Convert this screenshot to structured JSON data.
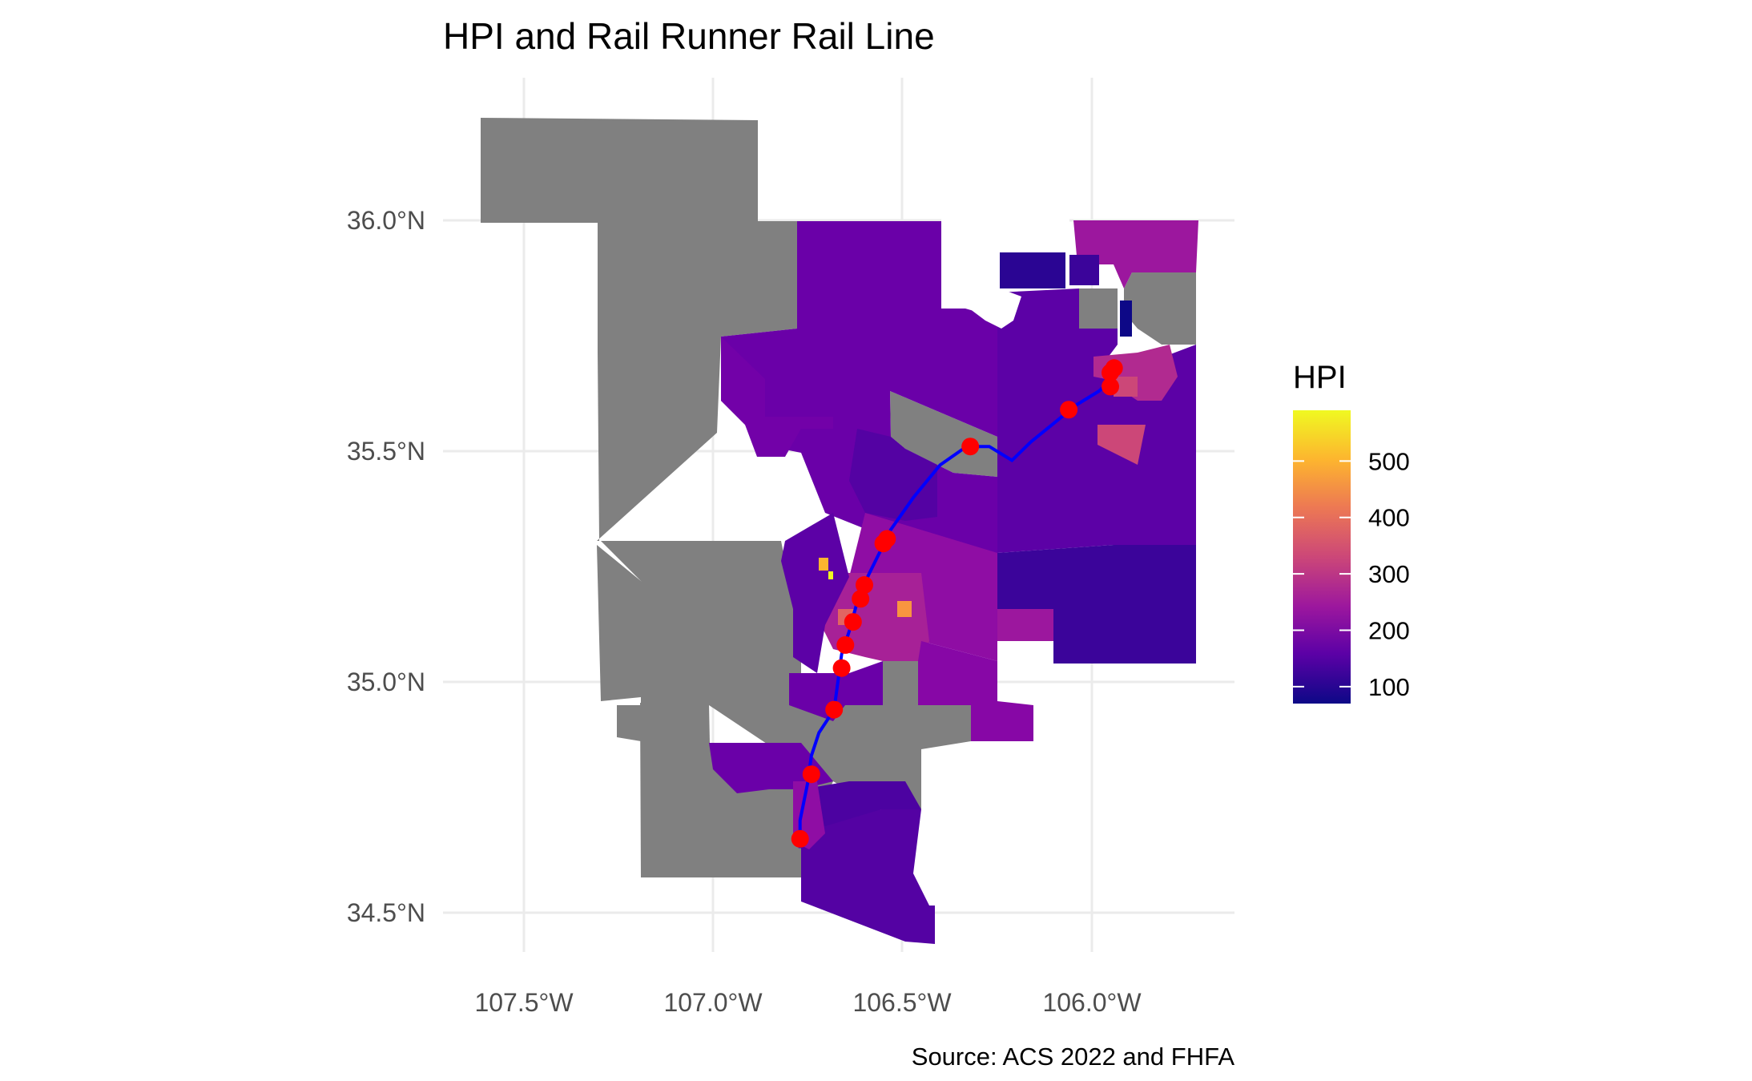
{
  "title": "HPI and Rail Runner Rail Line",
  "caption": "Source: ACS 2022 and FHFA",
  "legend": {
    "title": "HPI",
    "ticks": [
      "100",
      "200",
      "300",
      "400",
      "500"
    ],
    "tick_values": [
      100,
      200,
      300,
      400,
      500
    ],
    "range": [
      70,
      590
    ],
    "colors": [
      "#0d0887",
      "#5c01a6",
      "#9c179e",
      "#cc4778",
      "#ed7953",
      "#fdb42f",
      "#f0f921"
    ]
  },
  "colors": {
    "na_fill": "#808080",
    "rail_line": "#0000ff",
    "stations": "#ff0000",
    "grid": "#ebebeb"
  },
  "axes": {
    "x_ticks": [
      "107.5°W",
      "107.0°W",
      "106.5°W",
      "106.0°W"
    ],
    "x_tick_values": [
      -107.5,
      -107.0,
      -106.5,
      -106.0
    ],
    "y_ticks": [
      "36.0°N",
      "35.5°N",
      "35.0°N",
      "34.5°N"
    ],
    "y_tick_values": [
      36.0,
      35.5,
      35.0,
      34.5
    ],
    "x_range": [
      -107.75,
      -105.62
    ],
    "y_range": [
      34.42,
      36.26
    ]
  },
  "stations": [
    {
      "lon": -106.77,
      "lat": 34.66
    },
    {
      "lon": -106.74,
      "lat": 34.8
    },
    {
      "lon": -106.68,
      "lat": 34.94
    },
    {
      "lon": -106.66,
      "lat": 35.03
    },
    {
      "lon": -106.65,
      "lat": 35.08
    },
    {
      "lon": -106.63,
      "lat": 35.13
    },
    {
      "lon": -106.61,
      "lat": 35.18
    },
    {
      "lon": -106.6,
      "lat": 35.21
    },
    {
      "lon": -106.55,
      "lat": 35.3
    },
    {
      "lon": -106.54,
      "lat": 35.31
    },
    {
      "lon": -106.32,
      "lat": 35.51
    },
    {
      "lon": -106.06,
      "lat": 35.59
    },
    {
      "lon": -105.95,
      "lat": 35.64
    },
    {
      "lon": -105.95,
      "lat": 35.67
    },
    {
      "lon": -105.94,
      "lat": 35.68
    }
  ],
  "rail_line": [
    [
      -106.77,
      34.64
    ],
    [
      -106.77,
      34.7
    ],
    [
      -106.75,
      34.78
    ],
    [
      -106.74,
      34.84
    ],
    [
      -106.72,
      34.89
    ],
    [
      -106.68,
      34.94
    ],
    [
      -106.67,
      35.0
    ],
    [
      -106.66,
      35.06
    ],
    [
      -106.64,
      35.11
    ],
    [
      -106.62,
      35.17
    ],
    [
      -106.59,
      35.23
    ],
    [
      -106.56,
      35.28
    ],
    [
      -106.53,
      35.33
    ],
    [
      -106.47,
      35.4
    ],
    [
      -106.4,
      35.47
    ],
    [
      -106.33,
      35.51
    ],
    [
      -106.27,
      35.51
    ],
    [
      -106.21,
      35.48
    ],
    [
      -106.16,
      35.52
    ],
    [
      -106.1,
      35.56
    ],
    [
      -106.04,
      35.6
    ],
    [
      -105.98,
      35.63
    ],
    [
      -105.94,
      35.66
    ],
    [
      -105.93,
      35.68
    ]
  ]
}
